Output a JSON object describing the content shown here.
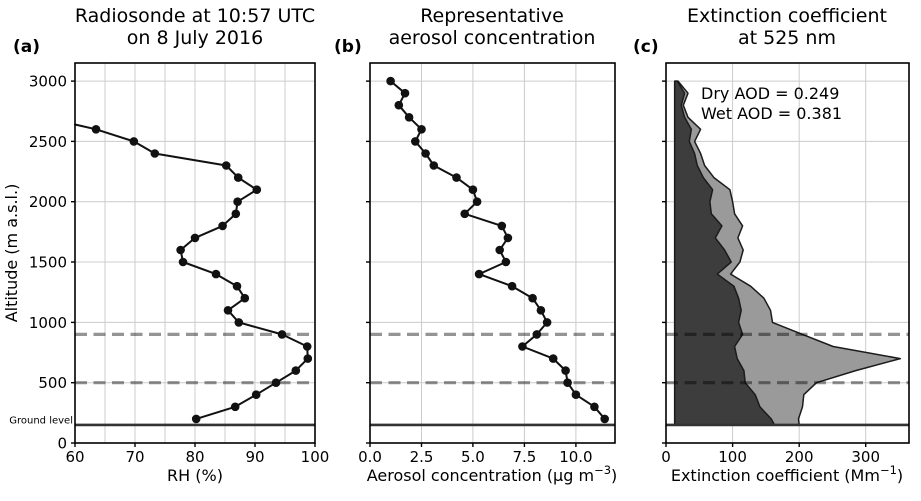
{
  "styles": {
    "grid_color": "#cccccc",
    "dashed_line_color": "#000000",
    "dashed_line_opacity": 0.42,
    "ground_line_color": "#333333",
    "background": "#ffffff",
    "text_color": "#000000"
  },
  "chart_data": [
    {
      "panel_label": "(a)",
      "type": "line",
      "title_lines": [
        "Radiosonde at 10:57 UTC",
        "on 8 July 2016"
      ],
      "xlabel": "RH (%)",
      "ylabel": "Altitude (m a.s.l.)",
      "xlim": [
        60,
        100
      ],
      "ylim": [
        0,
        3150
      ],
      "grid": true,
      "legend": "none",
      "xticks": [
        60,
        70,
        80,
        90,
        100
      ],
      "xtick_labels": [
        "60",
        "70",
        "80",
        "90",
        "100"
      ],
      "yticks": [
        0,
        500,
        1000,
        1500,
        2000,
        2500,
        3000
      ],
      "ytick_labels": [
        "0",
        "500",
        "1000",
        "1500",
        "2000",
        "2500",
        "3000"
      ],
      "xgrid": [
        65,
        70,
        75,
        80,
        85,
        90,
        95
      ],
      "ygrid": [
        500,
        1000,
        1500,
        2000,
        2500,
        3000
      ],
      "line_color": "#111111",
      "marker_from_index": 1,
      "altitude_m": [
        2640,
        2600,
        2500,
        2400,
        2300,
        2200,
        2100,
        2000,
        1900,
        1800,
        1700,
        1600,
        1500,
        1400,
        1300,
        1200,
        1100,
        1000,
        900,
        800,
        700,
        600,
        500,
        400,
        300,
        200
      ],
      "rh_percent": [
        60.0,
        63.5,
        69.8,
        73.3,
        85.2,
        87.2,
        90.3,
        87.1,
        86.8,
        84.6,
        80.0,
        77.6,
        78.0,
        83.5,
        87.0,
        88.3,
        85.5,
        87.3,
        94.5,
        98.7,
        98.8,
        96.8,
        93.5,
        90.2,
        86.7,
        80.2
      ],
      "dashed_lines_altitude_m": [
        900,
        500
      ],
      "ground_level_altitude_m": 150,
      "ground_level_label": "Ground level"
    },
    {
      "panel_label": "(b)",
      "type": "line",
      "title_lines": [
        "Representative",
        "aerosol concentration"
      ],
      "xlabel_parts": {
        "pre": "Aerosol concentration (µg m",
        "sup": "−3",
        "post": ")"
      },
      "xlim": [
        0,
        11.9
      ],
      "ylim": [
        0,
        3150
      ],
      "grid": true,
      "legend": "none",
      "xticks": [
        0,
        2.5,
        5,
        7.5,
        10
      ],
      "xtick_labels": [
        "0.0",
        "2.5",
        "5.0",
        "7.5",
        "10.0"
      ],
      "yticks": [
        0,
        500,
        1000,
        1500,
        2000,
        2500,
        3000
      ],
      "xgrid": [
        2.5,
        5,
        7.5,
        10
      ],
      "ygrid": [
        500,
        1000,
        1500,
        2000,
        2500,
        3000
      ],
      "line_color": "#111111",
      "marker_from_index": 0,
      "altitude_m": [
        3000,
        2900,
        2800,
        2700,
        2600,
        2500,
        2400,
        2300,
        2200,
        2100,
        2000,
        1900,
        1800,
        1700,
        1600,
        1500,
        1400,
        1300,
        1200,
        1100,
        1000,
        900,
        800,
        700,
        600,
        500,
        400,
        300,
        200
      ],
      "concentration_ug_m3": [
        1.0,
        1.7,
        1.4,
        1.9,
        2.5,
        2.2,
        2.7,
        3.1,
        4.2,
        5.0,
        5.2,
        4.6,
        6.4,
        6.7,
        6.3,
        6.6,
        5.3,
        6.9,
        7.9,
        8.3,
        8.6,
        8.1,
        7.4,
        8.9,
        9.5,
        9.6,
        10.0,
        10.9,
        11.4
      ],
      "dashed_lines_altitude_m": [
        900,
        500
      ],
      "ground_level_altitude_m": 150
    },
    {
      "panel_label": "(c)",
      "type": "area",
      "title_lines": [
        "Extinction coefficient",
        "at 525 nm"
      ],
      "xlabel_parts": {
        "pre": "Extinction coefficient (Mm",
        "sup": "−1",
        "post": ")"
      },
      "xlim": [
        0,
        365
      ],
      "ylim": [
        0,
        3150
      ],
      "grid": true,
      "legend": "none",
      "annotations": [
        "Dry AOD = 0.249",
        "Wet AOD = 0.381"
      ],
      "xticks": [
        0,
        100,
        200,
        300
      ],
      "xtick_labels": [
        "0",
        "100",
        "200",
        "300"
      ],
      "yticks": [
        0,
        500,
        1000,
        1500,
        2000,
        2500,
        3000
      ],
      "xgrid": [
        100,
        200,
        300
      ],
      "ygrid": [
        500,
        1000,
        1500,
        2000,
        2500,
        3000
      ],
      "baseline_Mm": 13,
      "dry_fill_color": "#3d3d3d",
      "wet_fill_color": "#9a9a9a",
      "edge_color": "#1b1b1b",
      "altitude_m": [
        3000,
        2900,
        2800,
        2700,
        2600,
        2500,
        2400,
        2300,
        2200,
        2100,
        2000,
        1900,
        1800,
        1700,
        1600,
        1500,
        1400,
        1300,
        1200,
        1100,
        1000,
        900,
        800,
        700,
        600,
        500,
        400,
        300,
        200,
        150
      ],
      "dry_extinction_Mm": [
        17,
        28,
        23,
        28,
        38,
        35,
        43,
        47,
        56,
        70,
        66,
        68,
        84,
        74,
        88,
        98,
        77,
        102,
        109,
        113,
        109,
        115,
        103,
        107,
        117,
        119,
        134,
        141,
        158,
        163
      ],
      "wet_extinction_Mm": [
        18,
        33,
        26,
        33,
        52,
        43,
        52,
        58,
        72,
        96,
        100,
        103,
        115,
        108,
        116,
        111,
        97,
        127,
        147,
        157,
        160,
        205,
        251,
        352,
        285,
        226,
        207,
        205,
        199,
        200
      ],
      "dashed_lines_altitude_m": [
        900,
        500
      ],
      "ground_level_altitude_m": 150
    }
  ]
}
